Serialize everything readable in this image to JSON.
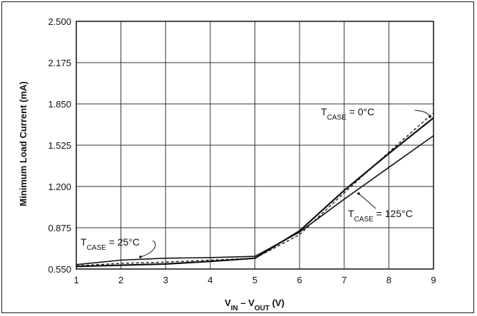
{
  "chart_data": {
    "type": "line",
    "xlabel": {
      "main": "V",
      "sub1": "IN",
      "mid": " – V",
      "sub2": "OUT",
      "unit": " (V)"
    },
    "ylabel": "Minimum Load Current (mA)",
    "xlim": [
      1,
      9
    ],
    "ylim": [
      0.55,
      2.5
    ],
    "x_ticks": [
      "1",
      "2",
      "3",
      "4",
      "5",
      "6",
      "7",
      "8",
      "9"
    ],
    "y_ticks": [
      "0.550",
      "0.875",
      "1.200",
      "1.525",
      "1.850",
      "2.175",
      "2.500"
    ],
    "grid": true,
    "series": [
      {
        "name": "TCASE = 25°C",
        "style": "solid",
        "points": [
          [
            1,
            0.585
          ],
          [
            2,
            0.62
          ],
          [
            3,
            0.635
          ],
          [
            4,
            0.64
          ],
          [
            5,
            0.65
          ],
          [
            6,
            0.84
          ],
          [
            7,
            1.1
          ],
          [
            8,
            1.35
          ],
          [
            9,
            1.6
          ]
        ]
      },
      {
        "name": "TCASE = 0°C",
        "style": "dashed",
        "points": [
          [
            1,
            0.575
          ],
          [
            2,
            0.595
          ],
          [
            3,
            0.605
          ],
          [
            4,
            0.62
          ],
          [
            5,
            0.635
          ],
          [
            6,
            0.82
          ],
          [
            7,
            1.15
          ],
          [
            8,
            1.47
          ],
          [
            9,
            1.78
          ]
        ]
      },
      {
        "name": "TCASE = 125°C",
        "style": "solid",
        "points": [
          [
            1,
            0.57
          ],
          [
            2,
            0.58
          ],
          [
            3,
            0.59
          ],
          [
            4,
            0.61
          ],
          [
            5,
            0.635
          ],
          [
            6,
            0.85
          ],
          [
            7,
            1.17
          ],
          [
            8,
            1.46
          ],
          [
            9,
            1.74
          ]
        ]
      }
    ],
    "annotations": [
      {
        "main": "T",
        "sub": "CASE",
        "rest": " = 25°C",
        "series": "TCASE = 25°C"
      },
      {
        "main": "T",
        "sub": "CASE",
        "rest": " = 0°C",
        "series": "TCASE = 0°C"
      },
      {
        "main": "T",
        "sub": "CASE",
        "rest": " = 125°C",
        "series": "TCASE = 125°C"
      }
    ],
    "colors": {
      "line": "#111111",
      "grid": "#333333"
    }
  }
}
